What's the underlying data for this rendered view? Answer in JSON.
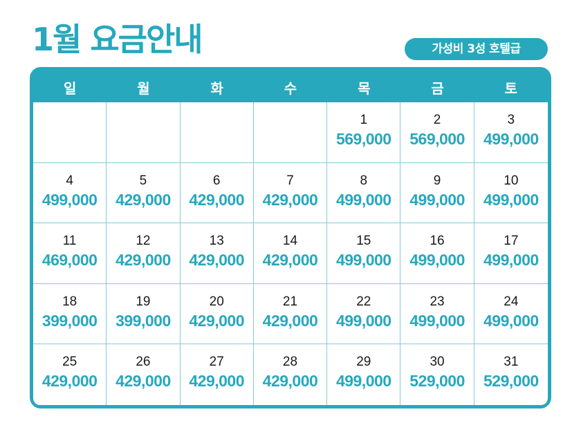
{
  "title": "1월 요금안내",
  "badge": "가성비 3성 호텔급",
  "colors": {
    "accent": "#27a8bd",
    "grid_line": "#7fcdd9",
    "day_text": "#1a1a1a"
  },
  "weekdays": [
    "일",
    "월",
    "화",
    "수",
    "목",
    "금",
    "토"
  ],
  "weeks": [
    [
      {
        "day": "",
        "price": ""
      },
      {
        "day": "",
        "price": ""
      },
      {
        "day": "",
        "price": ""
      },
      {
        "day": "",
        "price": ""
      },
      {
        "day": "1",
        "price": "569,000"
      },
      {
        "day": "2",
        "price": "569,000"
      },
      {
        "day": "3",
        "price": "499,000"
      }
    ],
    [
      {
        "day": "4",
        "price": "499,000"
      },
      {
        "day": "5",
        "price": "429,000"
      },
      {
        "day": "6",
        "price": "429,000"
      },
      {
        "day": "7",
        "price": "429,000"
      },
      {
        "day": "8",
        "price": "499,000"
      },
      {
        "day": "9",
        "price": "499,000"
      },
      {
        "day": "10",
        "price": "499,000"
      }
    ],
    [
      {
        "day": "11",
        "price": "469,000"
      },
      {
        "day": "12",
        "price": "429,000"
      },
      {
        "day": "13",
        "price": "429,000"
      },
      {
        "day": "14",
        "price": "429,000"
      },
      {
        "day": "15",
        "price": "499,000"
      },
      {
        "day": "16",
        "price": "499,000"
      },
      {
        "day": "17",
        "price": "499,000"
      }
    ],
    [
      {
        "day": "18",
        "price": "399,000"
      },
      {
        "day": "19",
        "price": "399,000"
      },
      {
        "day": "20",
        "price": "429,000"
      },
      {
        "day": "21",
        "price": "429,000"
      },
      {
        "day": "22",
        "price": "499,000"
      },
      {
        "day": "23",
        "price": "499,000"
      },
      {
        "day": "24",
        "price": "499,000"
      }
    ],
    [
      {
        "day": "25",
        "price": "429,000"
      },
      {
        "day": "26",
        "price": "429,000"
      },
      {
        "day": "27",
        "price": "429,000"
      },
      {
        "day": "28",
        "price": "429,000"
      },
      {
        "day": "29",
        "price": "499,000"
      },
      {
        "day": "30",
        "price": "529,000"
      },
      {
        "day": "31",
        "price": "529,000"
      }
    ]
  ]
}
